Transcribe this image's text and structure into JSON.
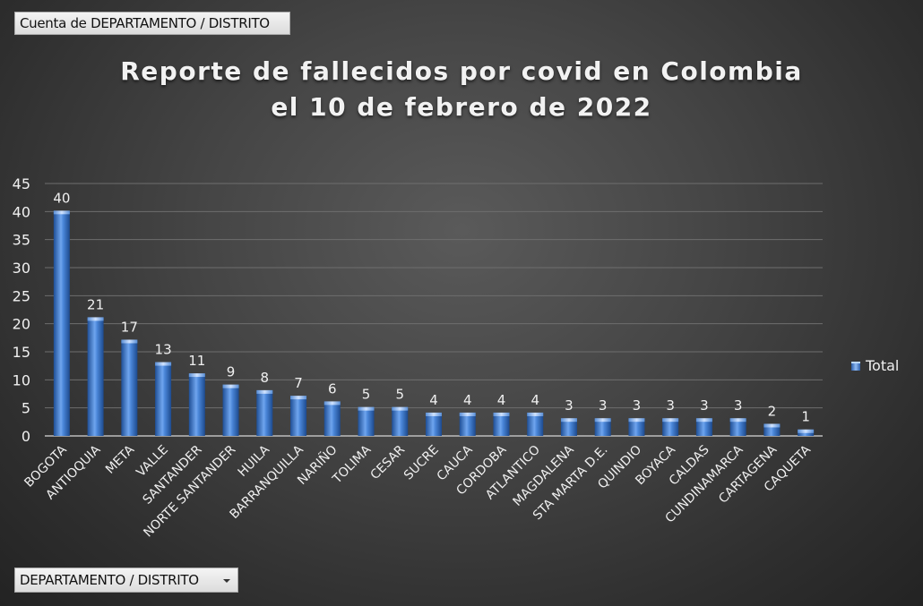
{
  "field_button": {
    "label": "Cuenta de DEPARTAMENTO / DISTRITO"
  },
  "filter_dropdown": {
    "label": "DEPARTAMENTO / DISTRITO"
  },
  "colors": {
    "bar": "#4a86d8",
    "bar_highlight": "#a9ccf7",
    "bar_dark": "#1f4f96",
    "text": "#f0f0f0",
    "grid": "#6e6e6e"
  },
  "chart_data": {
    "type": "bar",
    "title": [
      "Reporte de fallecidos por covid en Colombia",
      "el 10 de febrero de 2022"
    ],
    "legend": [
      "Total"
    ],
    "legend_position": "right",
    "ylim": [
      0,
      45
    ],
    "yticks": [
      0,
      5,
      10,
      15,
      20,
      25,
      30,
      35,
      40,
      45
    ],
    "grid": true,
    "categories": [
      "BOGOTA",
      "ANTIOQUIA",
      "META",
      "VALLE",
      "SANTANDER",
      "NORTE SANTANDER",
      "HUILA",
      "BARRANQUILLA",
      "NARIÑO",
      "TOLIMA",
      "CESAR",
      "SUCRE",
      "CAUCA",
      "CORDOBA",
      "ATLANTICO",
      "MAGDALENA",
      "STA MARTA D.E.",
      "QUINDIO",
      "BOYACA",
      "CALDAS",
      "CUNDINAMARCA",
      "CARTAGENA",
      "CAQUETA"
    ],
    "series": [
      {
        "name": "Total",
        "values": [
          40,
          21,
          17,
          13,
          11,
          9,
          8,
          7,
          6,
          5,
          5,
          4,
          4,
          4,
          4,
          3,
          3,
          3,
          3,
          3,
          3,
          2,
          1
        ]
      }
    ]
  }
}
